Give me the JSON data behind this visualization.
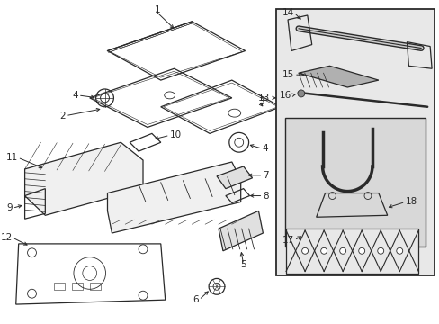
{
  "bg_color": "#ffffff",
  "line_color": "#2a2a2a",
  "box_fill": "#e8e8e8",
  "inner_box_fill": "#d8d8d8",
  "hatch_color": "#555555",
  "figsize": [
    4.89,
    3.6
  ],
  "dpi": 100
}
